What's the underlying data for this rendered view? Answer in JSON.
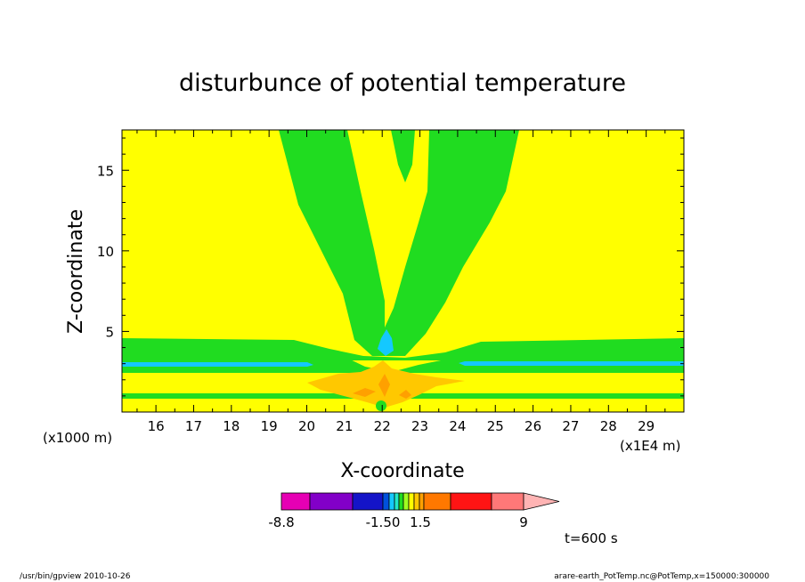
{
  "chart_data": {
    "type": "heatmap",
    "title": "disturbunce of potential temperature",
    "xlabel": "X-coordinate",
    "ylabel": "Z-coordinate",
    "y_unit_note": "(x1000 m)",
    "x_unit_note": "(x1E4 m)",
    "x_ticks": [
      "16",
      "17",
      "18",
      "19",
      "20",
      "21",
      "22",
      "23",
      "24",
      "25",
      "26",
      "27",
      "28",
      "29"
    ],
    "y_ticks": [
      "5",
      "10",
      "15"
    ],
    "xlim": [
      15.1,
      30
    ],
    "ylim": [
      0,
      17.5
    ],
    "colorbar": {
      "labels": [
        "-8.8",
        "-1.50",
        "1.5",
        "9"
      ],
      "colors": [
        "#e600b4",
        "#8200c8",
        "#1414c8",
        "#0050dc",
        "#14c8ff",
        "#20e8c8",
        "#20dc20",
        "#a0ff20",
        "#ffff00",
        "#ffc800",
        "#ffa000",
        "#ff7800",
        "#ff1414",
        "#ff7878",
        "#ffb4b4"
      ]
    },
    "fill_colors": {
      "background": "#ffff00",
      "positive_small": "#20dc20",
      "negative_small": "#14c8ff",
      "warm": "#ffc800",
      "hot": "#ffa000"
    },
    "time_label": "t=600 s"
  },
  "footer": {
    "left": "/usr/bin/gpview  2010-10-26",
    "right": "arare-earth_PotTemp.nc@PotTemp,x=150000:300000"
  }
}
